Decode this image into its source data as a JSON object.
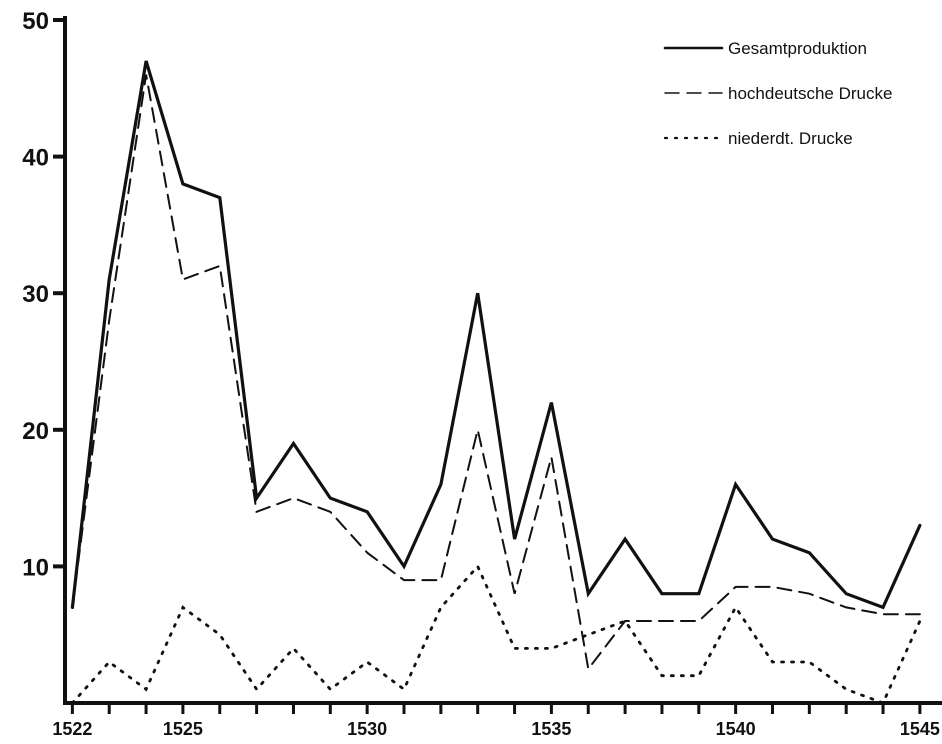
{
  "chart_data": {
    "type": "line",
    "title": "",
    "xlabel": "",
    "ylabel": "",
    "x": [
      1522,
      1523,
      1524,
      1525,
      1526,
      1527,
      1528,
      1529,
      1530,
      1531,
      1532,
      1533,
      1534,
      1535,
      1536,
      1537,
      1538,
      1539,
      1540,
      1541,
      1542,
      1543,
      1544,
      1545
    ],
    "xlim": [
      1521.8,
      1545.6
    ],
    "ylim": [
      0,
      50
    ],
    "x_ticks": [
      1522,
      1523,
      1524,
      1525,
      1526,
      1527,
      1528,
      1529,
      1530,
      1531,
      1532,
      1533,
      1534,
      1535,
      1536,
      1537,
      1538,
      1539,
      1540,
      1541,
      1542,
      1543,
      1544,
      1545
    ],
    "x_tick_labels": [
      "1522",
      "1525",
      "1530",
      "1535",
      "1540",
      "1545"
    ],
    "y_tick_labels": [
      "10",
      "20",
      "30",
      "40",
      "50"
    ],
    "grid": false,
    "legend_position": "top-right",
    "series": [
      {
        "name": "Gesamtproduktion",
        "style": "solid",
        "values": [
          7,
          31,
          47,
          38,
          37,
          15,
          19,
          15,
          14,
          10,
          16,
          30,
          12,
          22,
          8,
          12,
          8,
          8,
          16,
          12,
          11,
          8,
          7,
          13
        ]
      },
      {
        "name": "hochdeutsche Drucke",
        "style": "dashed",
        "values": [
          7,
          28,
          46,
          31,
          32,
          14,
          15,
          14,
          11,
          9,
          9,
          20,
          8,
          18,
          2.5,
          6,
          6,
          6,
          8.5,
          8.5,
          8,
          7,
          6.5,
          6.5
        ]
      },
      {
        "name": "niederdt. Drucke",
        "style": "dotted",
        "values": [
          0,
          3,
          1,
          7,
          5,
          1,
          4,
          1,
          3,
          1,
          7,
          10,
          4,
          4,
          5,
          6,
          2,
          2,
          7,
          3,
          3,
          1,
          0,
          6
        ]
      }
    ]
  }
}
